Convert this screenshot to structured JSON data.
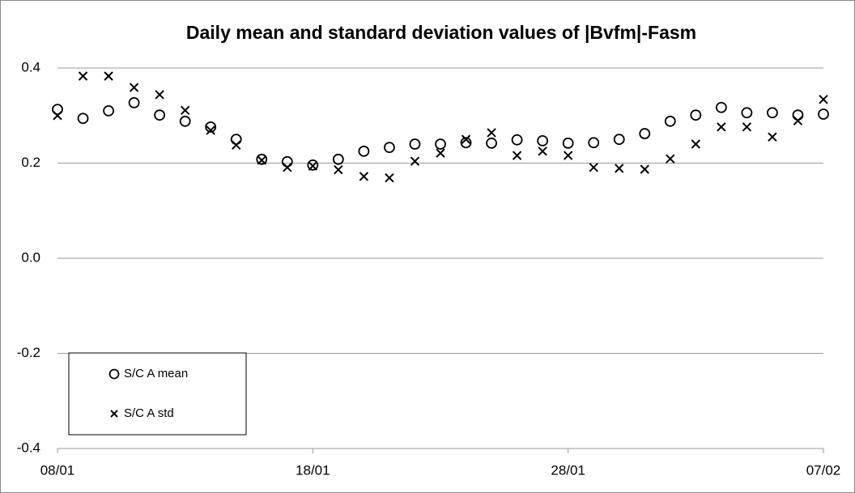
{
  "chart_data": {
    "type": "scatter",
    "title": "Daily mean and standard deviation values of |Bvfm|-Fasm",
    "categories": [
      "08/01",
      null,
      null,
      null,
      null,
      null,
      null,
      null,
      null,
      null,
      "18/01",
      null,
      null,
      null,
      null,
      null,
      null,
      null,
      null,
      null,
      "28/01",
      null,
      null,
      null,
      null,
      null,
      null,
      null,
      null,
      null,
      "07/02"
    ],
    "series": [
      {
        "name": "S/C A mean",
        "color": "#000000",
        "marker": "circle",
        "values": [
          0.313,
          0.294,
          0.31,
          0.327,
          0.301,
          0.288,
          0.276,
          0.25,
          0.208,
          0.203,
          0.196,
          0.208,
          0.225,
          0.233,
          0.24,
          0.24,
          0.243,
          0.242,
          0.249,
          0.247,
          0.242,
          0.243,
          0.25,
          0.262,
          0.288,
          0.301,
          0.317,
          0.306,
          0.306,
          0.301,
          0.303
        ]
      },
      {
        "name": "S/C A std",
        "color": "#000000",
        "marker": "x",
        "values": [
          0.3,
          0.383,
          0.383,
          0.359,
          0.344,
          0.311,
          0.269,
          0.238,
          0.206,
          0.191,
          0.194,
          0.186,
          0.172,
          0.169,
          0.204,
          0.221,
          0.25,
          0.264,
          0.216,
          0.225,
          0.216,
          0.191,
          0.189,
          0.187,
          0.209,
          0.24,
          0.276,
          0.276,
          0.255,
          0.289,
          0.334
        ]
      }
    ],
    "ylim": [
      -0.4,
      0.4
    ],
    "yticks": [
      -0.4,
      -0.2,
      {
        "value": 0,
        "label": "0.0"
      },
      0.2,
      0.4
    ],
    "grid": true,
    "legend": "lower left"
  }
}
